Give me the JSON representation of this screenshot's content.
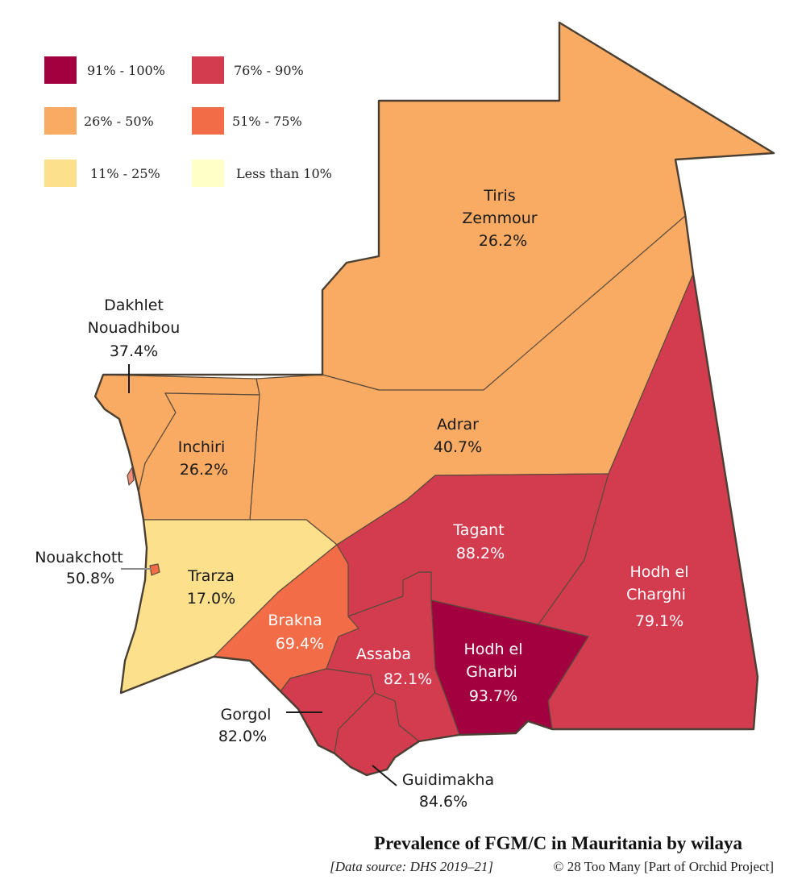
{
  "legend": [
    {
      "label": "91% - 100%",
      "color": "#a3003f"
    },
    {
      "label": "76% - 90%",
      "color": "#d33c4f"
    },
    {
      "label": "26% - 50%",
      "color": "#f9aa63"
    },
    {
      "label": "51% - 75%",
      "color": "#f26d47"
    },
    {
      "label": "11% - 25%",
      "color": "#fde08c"
    },
    {
      "label": "Less than 10%",
      "color": "#ffffc8"
    }
  ],
  "regions": [
    {
      "name": "Tiris Zemmour",
      "name_lines": [
        "Tiris",
        "Zemmour"
      ],
      "value": "26.2%",
      "color": "#f9aa63"
    },
    {
      "name": "Dakhlet Nouadhibou",
      "name_lines": [
        "Dakhlet",
        "Nouadhibou"
      ],
      "value": "37.4%",
      "color": "#f9aa63"
    },
    {
      "name": "Inchiri",
      "name_lines": [
        "Inchiri"
      ],
      "value": "26.2%",
      "color": "#f9aa63"
    },
    {
      "name": "Adrar",
      "name_lines": [
        "Adrar"
      ],
      "value": "40.7%",
      "color": "#f9aa63"
    },
    {
      "name": "Nouakchott",
      "name_lines": [
        "Nouakchott"
      ],
      "value": "50.8%",
      "color": "#f26d47"
    },
    {
      "name": "Trarza",
      "name_lines": [
        "Trarza"
      ],
      "value": "17.0%",
      "color": "#fde08c"
    },
    {
      "name": "Tagant",
      "name_lines": [
        "Tagant"
      ],
      "value": "88.2%",
      "color": "#d33c4f"
    },
    {
      "name": "Hodh el Charghi",
      "name_lines": [
        "Hodh el",
        "Charghi"
      ],
      "value": "79.1%",
      "color": "#d33c4f"
    },
    {
      "name": "Brakna",
      "name_lines": [
        "Brakna"
      ],
      "value": "69.4%",
      "color": "#f26d47"
    },
    {
      "name": "Assaba",
      "name_lines": [
        "Assaba"
      ],
      "value": "82.1%",
      "color": "#d33c4f"
    },
    {
      "name": "Hodh el Gharbi",
      "name_lines": [
        "Hodh el",
        "Gharbi"
      ],
      "value": "93.7%",
      "color": "#a3003f"
    },
    {
      "name": "Gorgol",
      "name_lines": [
        "Gorgol"
      ],
      "value": "82.0%",
      "color": "#d33c4f"
    },
    {
      "name": "Guidimakha",
      "name_lines": [
        "Guidimakha"
      ],
      "value": "84.6%",
      "color": "#d33c4f"
    }
  ],
  "title": "Prevalence of FGM/C in Mauritania by wilaya",
  "source": "[Data source: DHS 2019–21]",
  "credit": "© 28 Too Many [Part of Orchid Project]"
}
